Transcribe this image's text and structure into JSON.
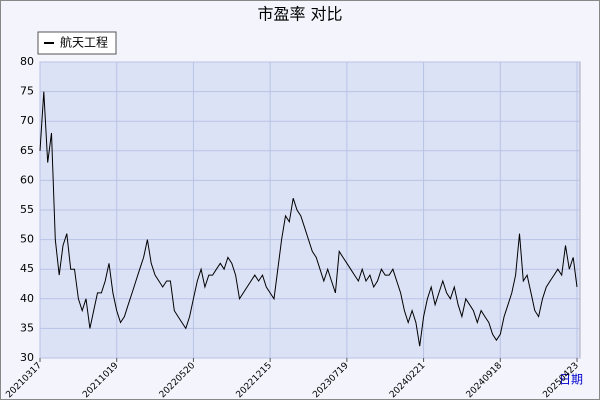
{
  "chart_data": {
    "type": "line",
    "title": "市盈率  对比",
    "x_label": "日期",
    "categories": [
      "20210317",
      null,
      null,
      null,
      null,
      null,
      null,
      null,
      null,
      null,
      null,
      null,
      null,
      null,
      null,
      null,
      null,
      null,
      null,
      null,
      "20211019",
      null,
      null,
      null,
      null,
      null,
      null,
      null,
      null,
      null,
      null,
      null,
      null,
      null,
      null,
      null,
      null,
      null,
      null,
      null,
      "20220520",
      null,
      null,
      null,
      null,
      null,
      null,
      null,
      null,
      null,
      null,
      null,
      null,
      null,
      null,
      null,
      null,
      null,
      null,
      null,
      "20221215",
      null,
      null,
      null,
      null,
      null,
      null,
      null,
      null,
      null,
      null,
      null,
      null,
      null,
      null,
      null,
      null,
      null,
      null,
      null,
      "20230719",
      null,
      null,
      null,
      null,
      null,
      null,
      null,
      null,
      null,
      null,
      null,
      null,
      null,
      null,
      null,
      null,
      null,
      null,
      null,
      "20240221",
      null,
      null,
      null,
      null,
      null,
      null,
      null,
      null,
      null,
      null,
      null,
      null,
      null,
      null,
      null,
      null,
      null,
      null,
      null,
      "20240918",
      null,
      null,
      null,
      null,
      null,
      null,
      null,
      null,
      null,
      null,
      null,
      null,
      null,
      null,
      null,
      null,
      null,
      null,
      null,
      "20250423"
    ],
    "series": [
      {
        "name": "航天工程",
        "color": "#000000",
        "values": [
          65,
          75,
          63,
          68,
          50,
          44,
          49,
          51,
          45,
          45,
          40,
          38,
          40,
          35,
          38,
          41,
          41,
          43,
          46,
          41,
          38,
          36,
          37,
          39,
          41,
          43,
          45,
          47,
          50,
          46,
          44,
          43,
          42,
          43,
          43,
          38,
          37,
          36,
          35,
          37,
          40,
          43,
          45,
          42,
          44,
          44,
          45,
          46,
          45,
          47,
          46,
          44,
          40,
          41,
          42,
          43,
          44,
          43,
          44,
          42,
          41,
          40,
          45,
          50,
          54,
          53,
          57,
          55,
          54,
          52,
          50,
          48,
          47,
          45,
          43,
          45,
          43,
          41,
          48,
          47,
          46,
          45,
          44,
          43,
          45,
          43,
          44,
          42,
          43,
          45,
          44,
          44,
          45,
          43,
          41,
          38,
          36,
          38,
          36,
          32,
          37,
          40,
          42,
          39,
          41,
          43,
          41,
          40,
          42,
          39,
          37,
          40,
          39,
          38,
          36,
          38,
          37,
          36,
          34,
          33,
          34,
          37,
          39,
          41,
          44,
          51,
          43,
          44,
          41,
          38,
          37,
          40,
          42,
          43,
          44,
          45,
          44,
          49,
          45,
          47,
          42
        ]
      }
    ],
    "ylim": [
      30,
      80
    ],
    "yticks": [
      30,
      35,
      40,
      45,
      50,
      55,
      60,
      65,
      70,
      75,
      80
    ],
    "grid": true
  }
}
